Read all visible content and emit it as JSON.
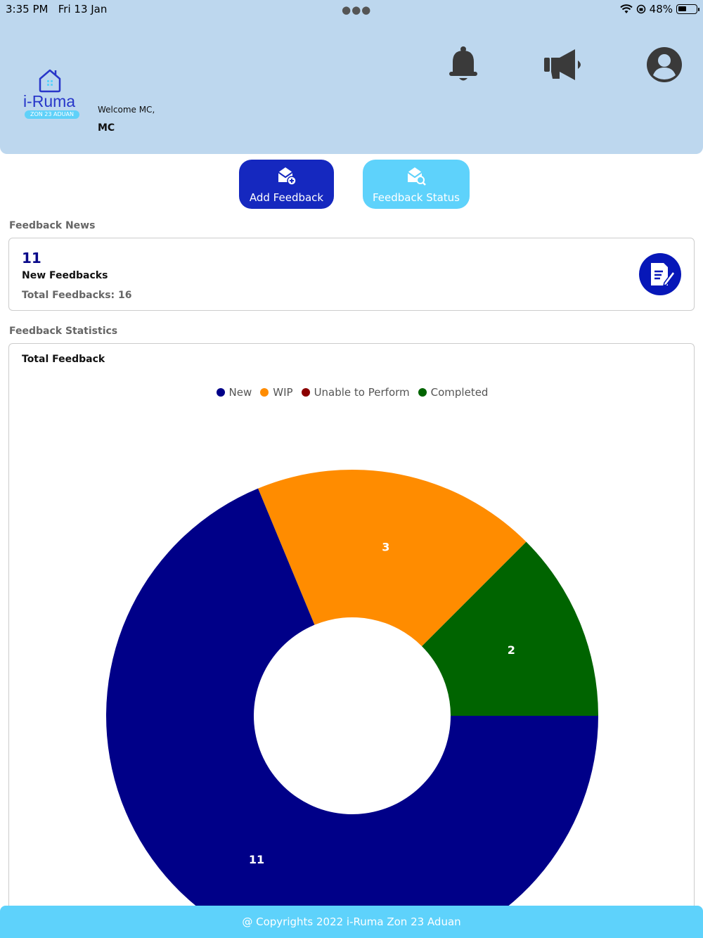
{
  "status_bar": {
    "time": "3:35 PM",
    "date": "Fri 13 Jan",
    "battery": "48%"
  },
  "header": {
    "logo_text": "i-Ruma",
    "logo_subtext": "ZON 23 ADUAN",
    "welcome": "Welcome MC,",
    "username": "MC",
    "icons": [
      "bell-icon",
      "megaphone-icon",
      "user-icon"
    ]
  },
  "actions": {
    "add_feedback": "Add Feedback",
    "feedback_status": "Feedback Status"
  },
  "news": {
    "section_label": "Feedback News",
    "new_count": "11",
    "new_label": "New Feedbacks",
    "total_label": "Total Feedbacks: 16"
  },
  "stats": {
    "section_label": "Feedback Statistics",
    "card_title": "Total Feedback"
  },
  "chart_data": {
    "type": "pie",
    "subtype": "donut",
    "title": "Total Feedback",
    "legend_position": "top",
    "categories": [
      "New",
      "WIP",
      "Unable to Perform",
      "Completed"
    ],
    "values": [
      11,
      3,
      0,
      2
    ],
    "colors": [
      "#000088",
      "#ff8c00",
      "#8b0000",
      "#006400"
    ],
    "data_labels": [
      "11",
      "3",
      "",
      "2"
    ]
  },
  "footer": {
    "text": "@ Copyrights 2022 i-Ruma Zon 23 Aduan"
  }
}
